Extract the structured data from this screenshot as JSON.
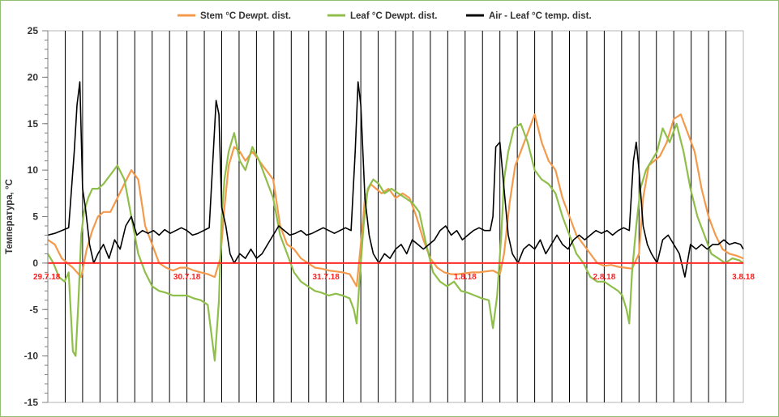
{
  "chart_data": {
    "type": "line",
    "ylabel": "Температура, °C",
    "ylim": [
      -15,
      25
    ],
    "yticks": [
      -15,
      -10,
      -5,
      0,
      5,
      10,
      15,
      20,
      25
    ],
    "x_range": [
      0,
      5
    ],
    "x_ticks": [
      {
        "x": 0,
        "label": "29.7.18"
      },
      {
        "x": 1,
        "label": "30.7.18"
      },
      {
        "x": 2,
        "label": "31.7.18"
      },
      {
        "x": 3,
        "label": "1.8.18"
      },
      {
        "x": 4,
        "label": "2.8.18"
      },
      {
        "x": 5,
        "label": "3.8.18"
      }
    ],
    "vertical_gridlines_per_day": 8,
    "horizontal_gridlines": false,
    "vertical_gridlines": true,
    "reference_line": {
      "y": 0,
      "color": "#ff2a2a"
    },
    "legend_position": "top-center",
    "series": [
      {
        "name": "Stem °C Dewpt. dist.",
        "color": "#f39a4c",
        "x": [
          0,
          0.05,
          0.1,
          0.18,
          0.24,
          0.28,
          0.32,
          0.36,
          0.4,
          0.45,
          0.5,
          0.55,
          0.6,
          0.65,
          0.7,
          0.75,
          0.8,
          0.85,
          0.9,
          0.95,
          1.0,
          1.05,
          1.1,
          1.15,
          1.2,
          1.24,
          1.27,
          1.3,
          1.34,
          1.38,
          1.42,
          1.47,
          1.52,
          1.57,
          1.62,
          1.67,
          1.72,
          1.77,
          1.82,
          1.87,
          1.92,
          1.97,
          2.02,
          2.07,
          2.12,
          2.17,
          2.22,
          2.25,
          2.28,
          2.32,
          2.36,
          2.4,
          2.45,
          2.5,
          2.55,
          2.6,
          2.65,
          2.7,
          2.75,
          2.8,
          2.85,
          2.9,
          2.95,
          3.0,
          3.05,
          3.1,
          3.15,
          3.2,
          3.25,
          3.28,
          3.32,
          3.36,
          3.4,
          3.45,
          3.5,
          3.55,
          3.6,
          3.65,
          3.7,
          3.75,
          3.8,
          3.85,
          3.9,
          3.95,
          4.0,
          4.05,
          4.1,
          4.15,
          4.2,
          4.25,
          4.28,
          4.32,
          4.36,
          4.4,
          4.45,
          4.5,
          4.55,
          4.6,
          4.65,
          4.7,
          4.75,
          4.8,
          4.85,
          4.9,
          4.95,
          5.0
        ],
        "y": [
          2.5,
          2.0,
          0.5,
          -0.5,
          -1.5,
          1.5,
          3.5,
          5.0,
          5.5,
          5.5,
          7.0,
          8.5,
          10.0,
          9.0,
          4.0,
          2.0,
          0.0,
          -0.5,
          -0.8,
          -0.5,
          -0.5,
          -0.8,
          -1.0,
          -1.2,
          -1.5,
          0.5,
          6.0,
          10.5,
          12.5,
          12.0,
          11.0,
          12.0,
          11.0,
          10.0,
          9.0,
          4.0,
          2.0,
          1.5,
          0.5,
          0.0,
          -0.5,
          -0.6,
          -0.8,
          -0.9,
          -1.0,
          -1.2,
          -2.5,
          2.0,
          7.0,
          8.5,
          8.0,
          7.5,
          8.0,
          7.0,
          7.5,
          7.0,
          5.0,
          2.5,
          0.5,
          -0.5,
          -1.0,
          -1.2,
          -1.2,
          -1.1,
          -1.0,
          -1.0,
          -0.9,
          -0.8,
          -1.2,
          1.0,
          6.5,
          10.5,
          12.0,
          14.0,
          16.0,
          13.0,
          11.0,
          10.0,
          7.0,
          5.0,
          3.0,
          2.0,
          1.0,
          0.0,
          -0.3,
          -0.2,
          -0.4,
          -0.5,
          -0.6,
          1.0,
          7.0,
          10.5,
          11.0,
          11.5,
          13.0,
          15.5,
          16.0,
          14.0,
          12.0,
          8.0,
          5.0,
          3.0,
          1.5,
          1.0,
          0.8,
          0.5
        ]
      },
      {
        "name": "Leaf °C Dewpt. dist.",
        "color": "#8fbf4a",
        "x": [
          0,
          0.04,
          0.08,
          0.12,
          0.15,
          0.18,
          0.2,
          0.22,
          0.24,
          0.26,
          0.29,
          0.32,
          0.36,
          0.4,
          0.45,
          0.5,
          0.55,
          0.6,
          0.65,
          0.7,
          0.75,
          0.8,
          0.85,
          0.9,
          0.95,
          1.0,
          1.05,
          1.1,
          1.15,
          1.2,
          1.23,
          1.25,
          1.27,
          1.3,
          1.34,
          1.38,
          1.42,
          1.47,
          1.52,
          1.57,
          1.62,
          1.67,
          1.72,
          1.77,
          1.82,
          1.87,
          1.92,
          1.97,
          2.02,
          2.07,
          2.12,
          2.17,
          2.2,
          2.22,
          2.24,
          2.27,
          2.3,
          2.34,
          2.38,
          2.42,
          2.47,
          2.52,
          2.57,
          2.62,
          2.67,
          2.72,
          2.77,
          2.82,
          2.87,
          2.92,
          2.97,
          3.02,
          3.07,
          3.12,
          3.17,
          3.2,
          3.23,
          3.26,
          3.28,
          3.31,
          3.35,
          3.4,
          3.45,
          3.5,
          3.55,
          3.6,
          3.65,
          3.7,
          3.75,
          3.8,
          3.85,
          3.9,
          3.95,
          4.0,
          4.05,
          4.1,
          4.13,
          4.16,
          4.18,
          4.2,
          4.23,
          4.26,
          4.3,
          4.34,
          4.38,
          4.42,
          4.47,
          4.52,
          4.57,
          4.62,
          4.67,
          4.72,
          4.77,
          4.82,
          4.87,
          4.92,
          4.97,
          5.0
        ],
        "y": [
          1.0,
          0.0,
          -1.5,
          -2.0,
          -1.0,
          -9.5,
          -10.0,
          -4.0,
          3.0,
          5.5,
          7.0,
          8.0,
          8.0,
          8.5,
          9.5,
          10.5,
          9.0,
          5.0,
          1.0,
          -1.0,
          -2.5,
          -3.0,
          -3.2,
          -3.5,
          -3.5,
          -3.5,
          -3.8,
          -4.0,
          -4.5,
          -10.5,
          -4.0,
          5.0,
          9.0,
          12.0,
          14.0,
          11.0,
          10.0,
          12.5,
          11.0,
          9.0,
          7.0,
          3.0,
          1.0,
          -1.0,
          -2.0,
          -2.5,
          -3.0,
          -3.2,
          -3.5,
          -3.3,
          -3.5,
          -3.8,
          -5.0,
          -6.5,
          -2.0,
          4.0,
          8.0,
          9.0,
          8.5,
          7.5,
          8.0,
          7.5,
          7.0,
          6.5,
          5.5,
          2.0,
          -1.0,
          -2.0,
          -2.5,
          -2.0,
          -3.0,
          -3.2,
          -3.5,
          -3.8,
          -4.0,
          -7.0,
          -3.5,
          3.0,
          9.0,
          12.0,
          14.5,
          15.0,
          13.0,
          10.0,
          9.0,
          8.5,
          7.5,
          5.0,
          3.0,
          1.0,
          0.0,
          -1.5,
          -2.0,
          -2.0,
          -2.5,
          -3.0,
          -3.5,
          -5.0,
          -6.5,
          -1.0,
          4.0,
          8.0,
          10.0,
          11.0,
          12.0,
          14.5,
          13.0,
          15.0,
          12.0,
          8.0,
          5.0,
          3.0,
          1.0,
          0.5,
          0.0,
          0.5,
          0.3,
          0.0
        ]
      },
      {
        "name": "Air - Leaf °C temp. dist.",
        "color": "#000000",
        "x": [
          0,
          0.05,
          0.1,
          0.15,
          0.19,
          0.21,
          0.23,
          0.25,
          0.27,
          0.3,
          0.33,
          0.36,
          0.4,
          0.44,
          0.48,
          0.52,
          0.56,
          0.6,
          0.64,
          0.68,
          0.72,
          0.76,
          0.8,
          0.84,
          0.88,
          0.92,
          0.96,
          1.0,
          1.04,
          1.08,
          1.12,
          1.16,
          1.19,
          1.21,
          1.23,
          1.25,
          1.28,
          1.31,
          1.34,
          1.38,
          1.42,
          1.46,
          1.5,
          1.54,
          1.58,
          1.62,
          1.66,
          1.7,
          1.74,
          1.78,
          1.82,
          1.86,
          1.9,
          1.94,
          1.98,
          2.02,
          2.06,
          2.1,
          2.14,
          2.18,
          2.21,
          2.23,
          2.25,
          2.28,
          2.31,
          2.34,
          2.38,
          2.42,
          2.46,
          2.5,
          2.54,
          2.58,
          2.62,
          2.66,
          2.7,
          2.74,
          2.78,
          2.82,
          2.86,
          2.9,
          2.94,
          2.98,
          3.02,
          3.06,
          3.1,
          3.14,
          3.18,
          3.2,
          3.22,
          3.25,
          3.28,
          3.31,
          3.34,
          3.38,
          3.42,
          3.46,
          3.5,
          3.54,
          3.58,
          3.62,
          3.66,
          3.7,
          3.74,
          3.78,
          3.82,
          3.86,
          3.9,
          3.94,
          3.98,
          4.02,
          4.06,
          4.1,
          4.14,
          4.18,
          4.21,
          4.23,
          4.25,
          4.28,
          4.31,
          4.34,
          4.38,
          4.42,
          4.46,
          4.5,
          4.54,
          4.58,
          4.62,
          4.66,
          4.7,
          4.74,
          4.78,
          4.82,
          4.86,
          4.9,
          4.94,
          4.98,
          5.0
        ],
        "y": [
          3.0,
          3.2,
          3.5,
          3.8,
          12.0,
          17.0,
          19.5,
          8.0,
          6.0,
          2.0,
          0.0,
          1.0,
          2.0,
          0.5,
          2.5,
          1.5,
          4.0,
          5.0,
          3.0,
          3.5,
          3.2,
          3.5,
          3.0,
          3.6,
          3.2,
          3.5,
          3.8,
          3.5,
          3.0,
          3.2,
          3.5,
          3.8,
          12.0,
          17.5,
          16.0,
          6.0,
          4.0,
          1.0,
          0.0,
          1.0,
          0.5,
          1.5,
          0.5,
          1.0,
          2.0,
          3.0,
          4.0,
          3.5,
          3.0,
          3.2,
          3.5,
          3.0,
          3.2,
          3.5,
          3.8,
          3.5,
          3.2,
          3.5,
          3.8,
          3.5,
          12.0,
          19.5,
          17.0,
          7.0,
          3.0,
          1.0,
          0.0,
          1.0,
          0.5,
          1.5,
          2.0,
          1.0,
          2.5,
          2.0,
          1.5,
          2.0,
          2.5,
          3.5,
          4.0,
          3.0,
          3.5,
          2.5,
          3.0,
          3.5,
          3.8,
          3.5,
          3.5,
          5.0,
          12.5,
          13.0,
          8.0,
          3.0,
          1.0,
          0.0,
          1.5,
          2.0,
          1.5,
          2.5,
          1.0,
          2.0,
          3.0,
          2.0,
          1.5,
          2.5,
          3.0,
          2.5,
          3.0,
          3.5,
          3.2,
          3.5,
          3.0,
          3.5,
          3.8,
          3.5,
          11.0,
          13.0,
          10.0,
          4.0,
          2.0,
          1.0,
          0.0,
          2.5,
          3.0,
          2.0,
          1.0,
          -1.5,
          2.0,
          1.5,
          2.0,
          1.5,
          2.0,
          2.0,
          2.5,
          2.0,
          2.2,
          2.0,
          1.5
        ]
      }
    ]
  }
}
